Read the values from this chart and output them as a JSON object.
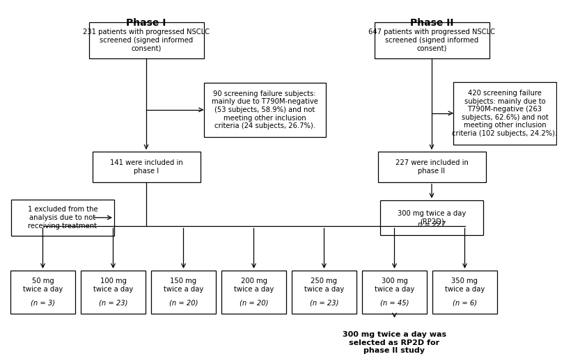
{
  "bg_color": "#ffffff",
  "font_size": 7.2,
  "title_font_size": 10,
  "title_phase1": "Phase I",
  "title_phase2": "Phase II",
  "bottom_text": "300 mg twice a day was\nselected as RP2D for\nphase II study"
}
